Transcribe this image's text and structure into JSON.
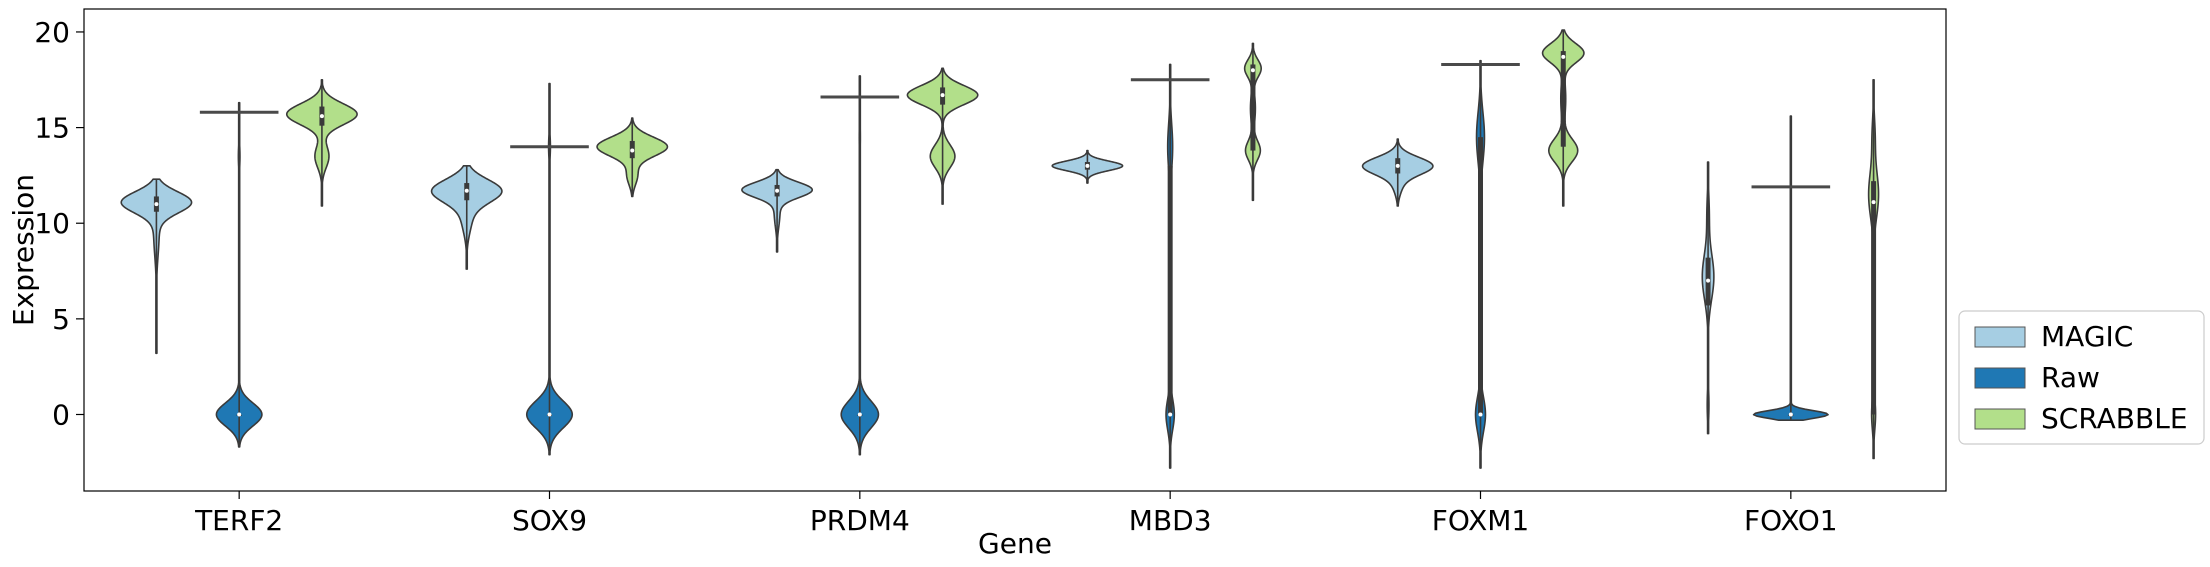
{
  "chart_data": {
    "type": "violin",
    "title": "",
    "xlabel": "Gene",
    "ylabel": "Expression",
    "ylim": [
      -4,
      21.2
    ],
    "yticks": [
      0,
      5,
      10,
      15,
      20
    ],
    "ytick_labels": [
      "0",
      "5",
      "10",
      "15",
      "20"
    ],
    "categories": [
      "TERF2",
      "SOX9",
      "PRDM4",
      "MBD3",
      "FOXM1",
      "FOXO1"
    ],
    "legend": {
      "placement": "right-lower",
      "entries": [
        {
          "name": "MAGIC",
          "color": "#a6cee3"
        },
        {
          "name": "Raw",
          "color": "#1f78b4"
        },
        {
          "name": "SCRABBLE",
          "color": "#b2df8a"
        }
      ]
    },
    "series": [
      {
        "name": "MAGIC",
        "color": "#a6cee3",
        "violins": [
          {
            "min": 3.2,
            "max": 12.3,
            "median": 11.0,
            "q1": 10.6,
            "q3": 11.4,
            "width": 0.85,
            "modes": [
              [
                11.1,
                1.0,
                0.55
              ],
              [
                9.5,
                0.08,
                1.2
              ]
            ]
          },
          {
            "min": 7.6,
            "max": 13.0,
            "median": 11.7,
            "q1": 11.2,
            "q3": 12.1,
            "width": 0.85,
            "modes": [
              [
                11.7,
                1.0,
                0.6
              ],
              [
                10.3,
                0.15,
                0.8
              ]
            ]
          },
          {
            "min": 8.5,
            "max": 12.8,
            "median": 11.7,
            "q1": 11.4,
            "q3": 12.0,
            "width": 0.85,
            "modes": [
              [
                11.75,
                1.0,
                0.4
              ],
              [
                10.5,
                0.08,
                0.7
              ]
            ]
          },
          {
            "min": 12.1,
            "max": 13.8,
            "median": 13.0,
            "q1": 12.8,
            "q3": 13.2,
            "width": 0.85,
            "modes": [
              [
                13.0,
                1.0,
                0.25
              ]
            ]
          },
          {
            "min": 10.9,
            "max": 14.4,
            "median": 13.0,
            "q1": 12.6,
            "q3": 13.4,
            "width": 0.85,
            "modes": [
              [
                13.0,
                1.0,
                0.45
              ],
              [
                12.0,
                0.12,
                0.5
              ]
            ]
          },
          {
            "min": -1.0,
            "max": 13.2,
            "median": 7.0,
            "q1": 5.7,
            "q3": 8.2,
            "width": 0.14,
            "modes": [
              [
                7.2,
                1.0,
                1.2
              ],
              [
                0.5,
                0.15,
                0.8
              ],
              [
                10.5,
                0.2,
                1.0
              ]
            ]
          }
        ]
      },
      {
        "name": "Raw",
        "color": "#1f78b4",
        "violins": [
          {
            "min": -1.7,
            "max": 16.3,
            "median": 0.0,
            "q1": 0.0,
            "q3": 0.0,
            "width": 0.55,
            "modes": [
              [
                0.0,
                1.0,
                0.6
              ],
              [
                13.5,
                0.035,
                0.6
              ]
            ],
            "bar_at": 15.8
          },
          {
            "min": -2.1,
            "max": 17.3,
            "median": 0.0,
            "q1": 0.0,
            "q3": 0.0,
            "width": 0.55,
            "modes": [
              [
                0.0,
                1.0,
                0.7
              ],
              [
                14.0,
                0.04,
                0.6
              ]
            ],
            "bar_at": 14.0
          },
          {
            "min": -2.1,
            "max": 17.7,
            "median": 0.0,
            "q1": 0.0,
            "q3": 0.0,
            "width": 0.45,
            "modes": [
              [
                0.0,
                1.0,
                0.7
              ],
              [
                14.5,
                0.03,
                0.8
              ]
            ],
            "bar_at": 16.6
          },
          {
            "min": -2.8,
            "max": 18.3,
            "median": 0.0,
            "q1": 0.0,
            "q3": 13.0,
            "width": 0.1,
            "modes": [
              [
                0.0,
                1.0,
                0.8
              ],
              [
                14.0,
                0.6,
                1.2
              ]
            ],
            "bar_at": 17.5
          },
          {
            "min": -2.8,
            "max": 18.5,
            "median": 0.0,
            "q1": 0.0,
            "q3": 14.5,
            "width": 0.12,
            "modes": [
              [
                0.0,
                1.0,
                0.9
              ],
              [
                14.5,
                0.8,
                1.3
              ]
            ],
            "bar_at": 18.3
          },
          {
            "min": -0.3,
            "max": 15.6,
            "median": 0.0,
            "q1": 0.0,
            "q3": 0.0,
            "width": 0.9,
            "modes": [
              [
                0.0,
                1.0,
                0.2
              ]
            ],
            "bar_at": 11.9
          }
        ]
      },
      {
        "name": "SCRABBLE",
        "color": "#b2df8a",
        "violins": [
          {
            "min": 10.9,
            "max": 17.5,
            "median": 15.6,
            "q1": 15.1,
            "q3": 16.1,
            "width": 0.85,
            "modes": [
              [
                15.7,
                1.0,
                0.55
              ],
              [
                13.5,
                0.2,
                0.6
              ]
            ]
          },
          {
            "min": 11.4,
            "max": 15.5,
            "median": 13.8,
            "q1": 13.4,
            "q3": 14.3,
            "width": 0.85,
            "modes": [
              [
                14.0,
                1.0,
                0.5
              ],
              [
                12.5,
                0.15,
                0.5
              ]
            ]
          },
          {
            "min": 11.0,
            "max": 18.1,
            "median": 16.7,
            "q1": 16.2,
            "q3": 17.1,
            "width": 0.85,
            "modes": [
              [
                16.7,
                1.0,
                0.5
              ],
              [
                13.5,
                0.35,
                0.6
              ]
            ]
          },
          {
            "min": 11.2,
            "max": 19.4,
            "median": 18.0,
            "q1": 13.8,
            "q3": 18.3,
            "width": 0.2,
            "modes": [
              [
                18.1,
                1.0,
                0.45
              ],
              [
                13.8,
                0.9,
                0.5
              ],
              [
                16.0,
                0.3,
                0.8
              ]
            ]
          },
          {
            "min": 10.9,
            "max": 20.1,
            "median": 18.7,
            "q1": 14.0,
            "q3": 19.0,
            "width": 0.5,
            "modes": [
              [
                18.9,
                1.0,
                0.5
              ],
              [
                13.8,
                0.7,
                0.6
              ],
              [
                16.5,
                0.12,
                1.0
              ]
            ]
          },
          {
            "min": -2.3,
            "max": 17.5,
            "median": 11.1,
            "q1": 0.0,
            "q3": 12.2,
            "width": 0.12,
            "modes": [
              [
                11.5,
                1.0,
                1.2
              ],
              [
                0.0,
                0.4,
                0.8
              ],
              [
                14.5,
                0.3,
                1.0
              ]
            ]
          }
        ]
      }
    ]
  }
}
